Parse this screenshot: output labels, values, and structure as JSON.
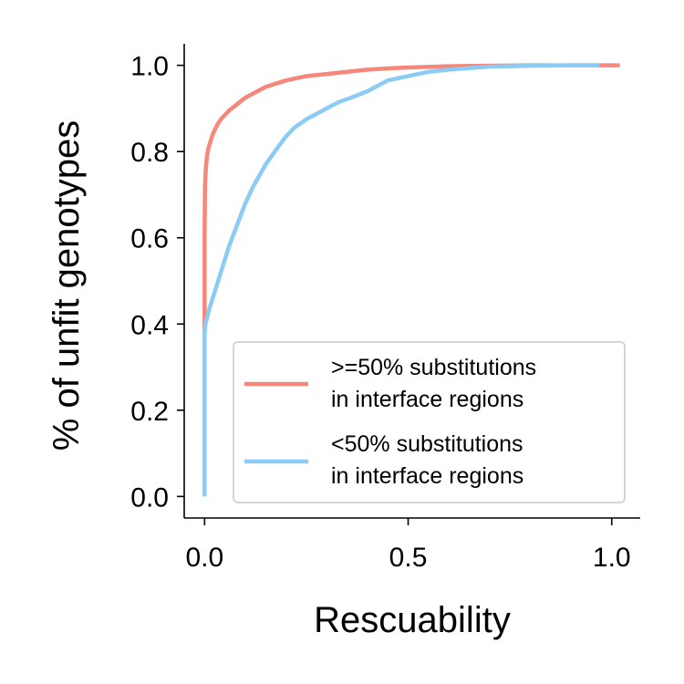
{
  "chart_data": {
    "type": "line",
    "title": "",
    "xlabel": "Rescuability",
    "ylabel": "% of unfit genotypes",
    "xlim": [
      -0.05,
      1.07
    ],
    "ylim": [
      -0.05,
      1.05
    ],
    "xticks": [
      0.0,
      0.5,
      1.0
    ],
    "xtick_labels": [
      "0.0",
      "0.5",
      "1.0"
    ],
    "yticks": [
      0.0,
      0.2,
      0.4,
      0.6,
      0.8,
      1.0
    ],
    "ytick_labels": [
      "0.0",
      "0.2",
      "0.4",
      "0.6",
      "0.8",
      "1.0"
    ],
    "grid": false,
    "legend_position": "lower-right",
    "series": [
      {
        "name": ">=50% substitutions\nin interface regions",
        "legend_lines": [
          ">=50% substitutions",
          "in interface regions"
        ],
        "color": "#F7877A",
        "x": [
          0,
          0,
          0.001,
          0.003,
          0.006,
          0.01,
          0.015,
          0.02,
          0.03,
          0.04,
          0.05,
          0.06,
          0.08,
          0.1,
          0.12,
          0.15,
          0.2,
          0.25,
          0.3,
          0.35,
          0.4,
          0.45,
          0.5,
          0.6,
          0.7,
          0.8,
          0.9,
          0.97,
          1.0,
          1.02
        ],
        "y": [
          0.38,
          0.6,
          0.72,
          0.76,
          0.79,
          0.81,
          0.825,
          0.84,
          0.86,
          0.875,
          0.885,
          0.895,
          0.91,
          0.925,
          0.935,
          0.95,
          0.965,
          0.975,
          0.98,
          0.985,
          0.99,
          0.993,
          0.995,
          0.998,
          0.999,
          1.0,
          1.0,
          1.0,
          1.0,
          1.0
        ]
      },
      {
        "name": "<50% substitutions\nin interface regions",
        "legend_lines": [
          "<50% substitutions",
          "in interface regions"
        ],
        "color": "#8CCBF3",
        "x": [
          0,
          0,
          0.002,
          0.005,
          0.01,
          0.02,
          0.03,
          0.04,
          0.05,
          0.06,
          0.08,
          0.1,
          0.12,
          0.15,
          0.18,
          0.2,
          0.22,
          0.25,
          0.28,
          0.3,
          0.33,
          0.36,
          0.4,
          0.45,
          0.5,
          0.55,
          0.6,
          0.7,
          0.8,
          0.9,
          0.97
        ],
        "y": [
          0.0,
          0.38,
          0.4,
          0.41,
          0.43,
          0.46,
          0.49,
          0.52,
          0.55,
          0.58,
          0.63,
          0.68,
          0.72,
          0.77,
          0.81,
          0.835,
          0.855,
          0.875,
          0.89,
          0.9,
          0.915,
          0.925,
          0.94,
          0.965,
          0.975,
          0.985,
          0.99,
          0.997,
          0.999,
          1.0,
          1.0
        ]
      }
    ]
  }
}
